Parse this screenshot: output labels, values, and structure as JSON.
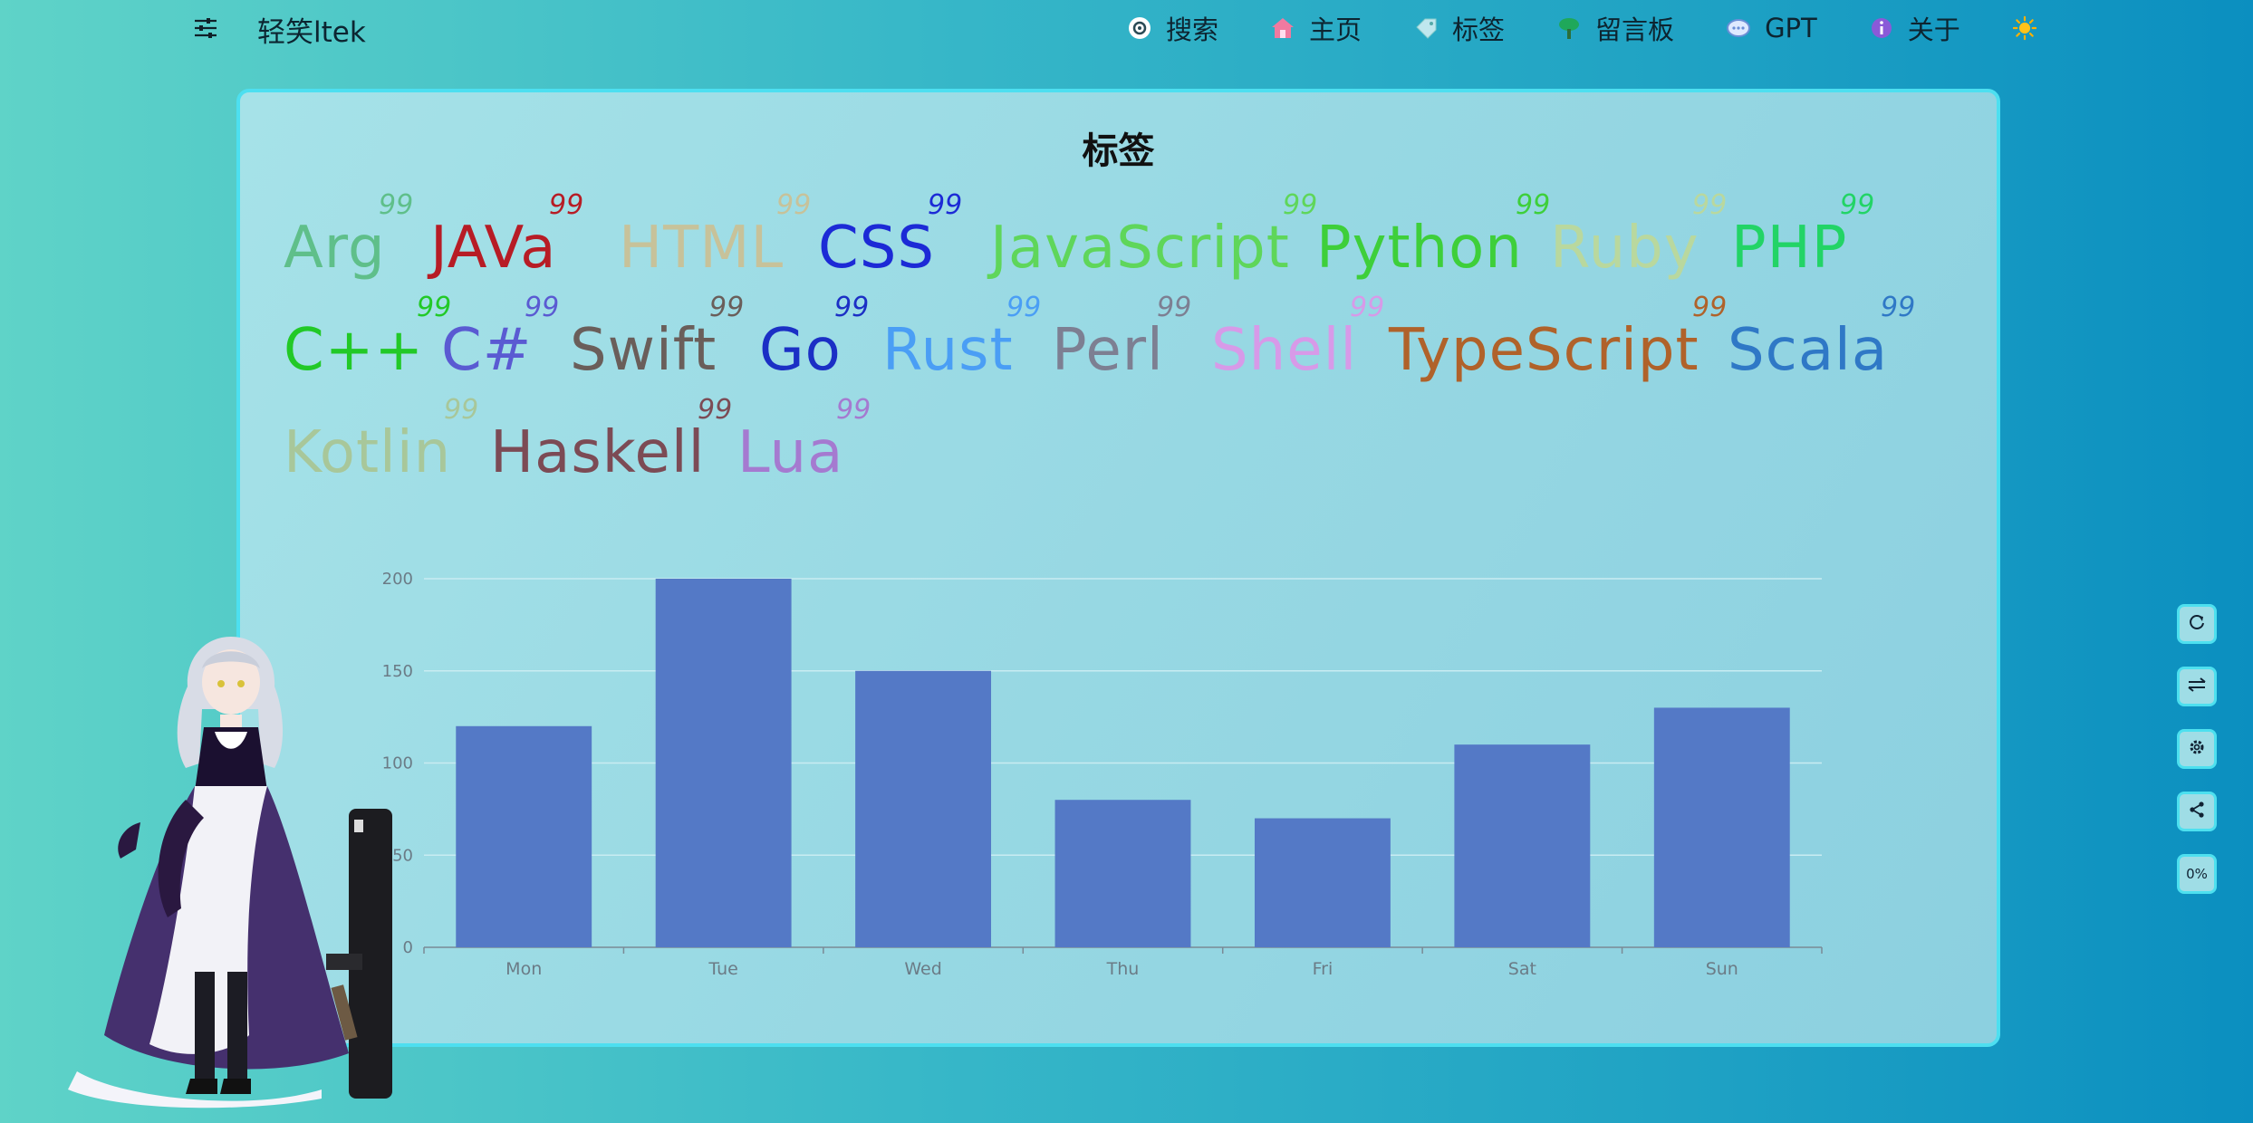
{
  "header": {
    "site_title": "轻笑ltek",
    "nav": [
      {
        "label": "搜索",
        "icon": "search-icon"
      },
      {
        "label": "主页",
        "icon": "home-icon"
      },
      {
        "label": "标签",
        "icon": "tag-icon"
      },
      {
        "label": "留言板",
        "icon": "tree-icon"
      },
      {
        "label": "GPT",
        "icon": "chat-icon"
      },
      {
        "label": "关于",
        "icon": "info-icon"
      }
    ],
    "theme_icon": "sun-icon"
  },
  "page": {
    "title": "标签",
    "tag_sup": "99",
    "tags": [
      {
        "name": "Arg",
        "color": "#5fbf8a"
      },
      {
        "name": "JAVa",
        "color": "#b71c25"
      },
      {
        "name": "HTML",
        "color": "#c7c29a"
      },
      {
        "name": "CSS",
        "color": "#1c2ad6"
      },
      {
        "name": "JavaScript",
        "color": "#5fd65a"
      },
      {
        "name": "Python",
        "color": "#3ecf3a"
      },
      {
        "name": "Ruby",
        "color": "#b9d89e"
      },
      {
        "name": "PHP",
        "color": "#22d466"
      },
      {
        "name": "C++",
        "color": "#22c927"
      },
      {
        "name": "C#",
        "color": "#5a5ad2"
      },
      {
        "name": "Swift",
        "color": "#6a5e5a"
      },
      {
        "name": "Go",
        "color": "#1b2fc5"
      },
      {
        "name": "Rust",
        "color": "#4a9ef5"
      },
      {
        "name": "Perl",
        "color": "#7d7f92"
      },
      {
        "name": "Shell",
        "color": "#d79ae8"
      },
      {
        "name": "TypeScript",
        "color": "#b0622a"
      },
      {
        "name": "Scala",
        "color": "#2f78c6"
      },
      {
        "name": "Kotlin",
        "color": "#a8c79a"
      },
      {
        "name": "Haskell",
        "color": "#7c4b55"
      },
      {
        "name": "Lua",
        "color": "#a57ad0"
      }
    ]
  },
  "chart_data": {
    "type": "bar",
    "categories": [
      "Mon",
      "Tue",
      "Wed",
      "Thu",
      "Fri",
      "Sat",
      "Sun"
    ],
    "values": [
      120,
      200,
      150,
      80,
      70,
      110,
      130
    ],
    "yticks": [
      0,
      50,
      100,
      150,
      200
    ],
    "ylim": [
      0,
      200
    ],
    "grid": true,
    "bar_color": "#5479c6"
  },
  "side_tools": [
    {
      "name": "refresh-button",
      "icon": "refresh-icon"
    },
    {
      "name": "swap-button",
      "icon": "swap-icon"
    },
    {
      "name": "settings-button",
      "icon": "gear-icon"
    },
    {
      "name": "share-button",
      "icon": "share-icon"
    },
    {
      "name": "progress-button",
      "label": "0%"
    }
  ]
}
